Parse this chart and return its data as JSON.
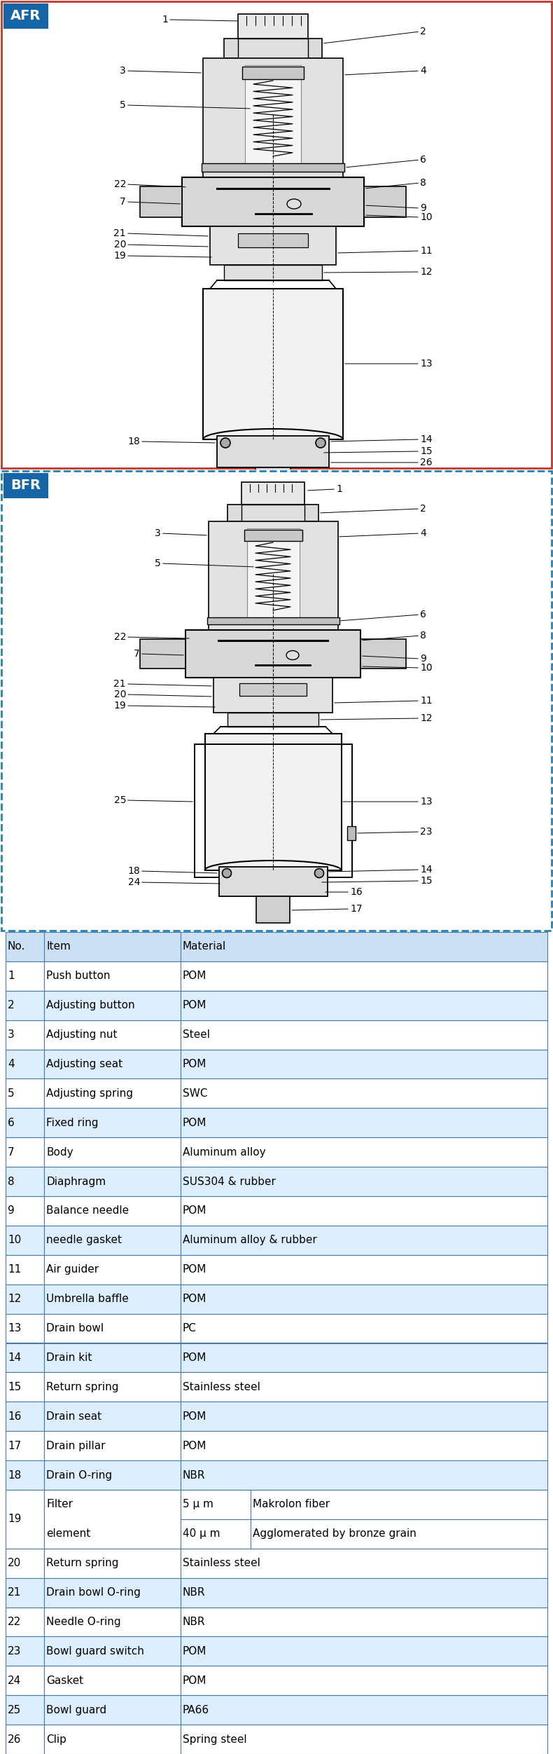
{
  "title_afr": "AFR",
  "title_bfr": "BFR",
  "title_bg": "#1565a7",
  "title_fg": "#ffffff",
  "border_color_afr": "#c0392b",
  "border_color_bfr": "#2980b9",
  "table_header_bg": "#cce0f5",
  "table_alt_bg": "#ddeeff",
  "table_line_color": "#4a7aaa",
  "fig_width": 7.9,
  "fig_height": 25.03,
  "bg_color": "#ffffff",
  "normal_rows": [
    [
      "1",
      "Push button",
      "POM"
    ],
    [
      "2",
      "Adjusting button",
      "POM"
    ],
    [
      "3",
      "Adjusting nut",
      "Steel"
    ],
    [
      "4",
      "Adjusting seat",
      "POM"
    ],
    [
      "5",
      "Adjusting spring",
      "SWC"
    ],
    [
      "6",
      "Fixed ring",
      "POM"
    ],
    [
      "7",
      "Body",
      "Aluminum alloy"
    ],
    [
      "8",
      "Diaphragm",
      "SUS304 & rubber"
    ],
    [
      "9",
      "Balance needle",
      "POM"
    ],
    [
      "10",
      "needle gasket",
      "Aluminum alloy & rubber"
    ],
    [
      "11",
      "Air guider",
      "POM"
    ],
    [
      "12",
      "Umbrella baffle",
      "POM"
    ],
    [
      "13",
      "Drain bowl",
      "PC"
    ],
    [
      "14",
      "Drain kit",
      "POM"
    ],
    [
      "15",
      "Return spring",
      "Stainless steel"
    ],
    [
      "16",
      "Drain seat",
      "POM"
    ],
    [
      "17",
      "Drain pillar",
      "POM"
    ],
    [
      "18",
      "Drain O-ring",
      "NBR"
    ]
  ],
  "row19": [
    "19",
    "Filter",
    "element",
    "5 μ m",
    "40 μ m",
    "Makrolon fiber",
    "Agglomerated by bronze grain"
  ],
  "end_rows": [
    [
      "20",
      "Return spring",
      "Stainless steel"
    ],
    [
      "21",
      "Drain bowl O-ring",
      "NBR"
    ],
    [
      "22",
      "Needle O-ring",
      "NBR"
    ],
    [
      "23",
      "Bowl guard switch",
      "POM"
    ],
    [
      "24",
      "Gasket",
      "POM"
    ],
    [
      "25",
      "Bowl guard",
      "PA66"
    ],
    [
      "26",
      "Clip",
      "Spring steel"
    ]
  ]
}
